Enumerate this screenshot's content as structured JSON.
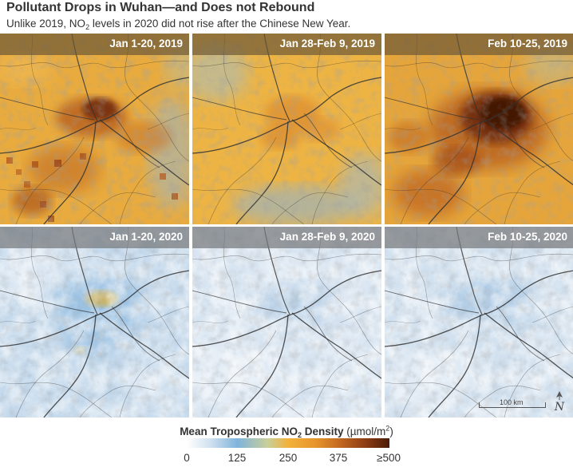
{
  "title": "Pollutant Drops in Wuhan—and Does not Rebound",
  "subtitle": {
    "before": "Unlike 2019, NO",
    "sub": "2",
    "after": " levels in 2020 did not rise after the Chinese New Year."
  },
  "panels": [
    {
      "label": "Jan 1-20, 2019",
      "year": 2019
    },
    {
      "label": "Jan 28-Feb 9, 2019",
      "year": 2019
    },
    {
      "label": "Feb 10-25, 2019",
      "year": 2019
    },
    {
      "label": "Jan 1-20, 2020",
      "year": 2020
    },
    {
      "label": "Jan 28-Feb 9, 2020",
      "year": 2020
    },
    {
      "label": "Feb 10-25, 2020",
      "year": 2020
    }
  ],
  "scale_bar": {
    "label": "100 km"
  },
  "north_arrow": {
    "letter": "N"
  },
  "legend": {
    "title_bold_before": "Mean Tropospheric NO",
    "title_bold_sub": "2",
    "title_bold_after": " Density",
    "title_units_before": " (µmol/m",
    "title_units_sup": "2",
    "title_units_after": ")",
    "ticks": [
      "0",
      "125",
      "250",
      "375",
      "≥500"
    ],
    "colors": [
      "#ffffff",
      "#7fb4dc",
      "#f2b23c",
      "#c46a20",
      "#4a1c07"
    ]
  },
  "colors": {
    "no2_background_2019": "#e8a93c",
    "no2_background_2020": "#c8dcee",
    "no2_hotspot_high": "#4a1c07",
    "header_2019": "#6b5535",
    "header_2020": "#76787b"
  }
}
